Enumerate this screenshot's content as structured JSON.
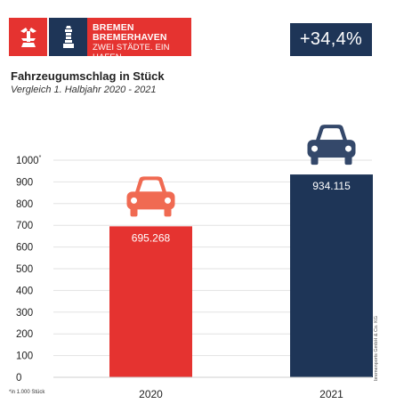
{
  "logo": {
    "line1": "BREMEN",
    "line2": "BREMERHAVEN",
    "line3": "ZWEI STÄDTE. EIN HAFEN."
  },
  "badge": "+34,4%",
  "footnote": "*in 1.000 Stück",
  "credit": "bremenports GmbH & Co. KG",
  "colors": {
    "red": "#e53330",
    "navy": "#1e3557",
    "car_red": "#f06a52",
    "car_navy": "#34486a"
  },
  "chart_data": {
    "type": "bar",
    "title": "Fahrzeugumschlag in Stück",
    "subtitle": "Vergleich 1. Halbjahr 2020 - 2021",
    "categories": [
      "2020",
      "2021"
    ],
    "values": [
      695.268,
      934.115
    ],
    "value_labels": [
      "695.268",
      "934.115"
    ],
    "bar_colors": [
      "#e53330",
      "#1e3557"
    ],
    "ylim": [
      0,
      1000
    ],
    "yticks": [
      0,
      100,
      200,
      300,
      400,
      500,
      600,
      700,
      800,
      900,
      1000
    ],
    "ytick_labels": [
      "0",
      "100",
      "200",
      "300",
      "400",
      "500",
      "600",
      "700",
      "800",
      "900",
      "1000"
    ],
    "ytick_top_marker": "*",
    "grid": true
  }
}
